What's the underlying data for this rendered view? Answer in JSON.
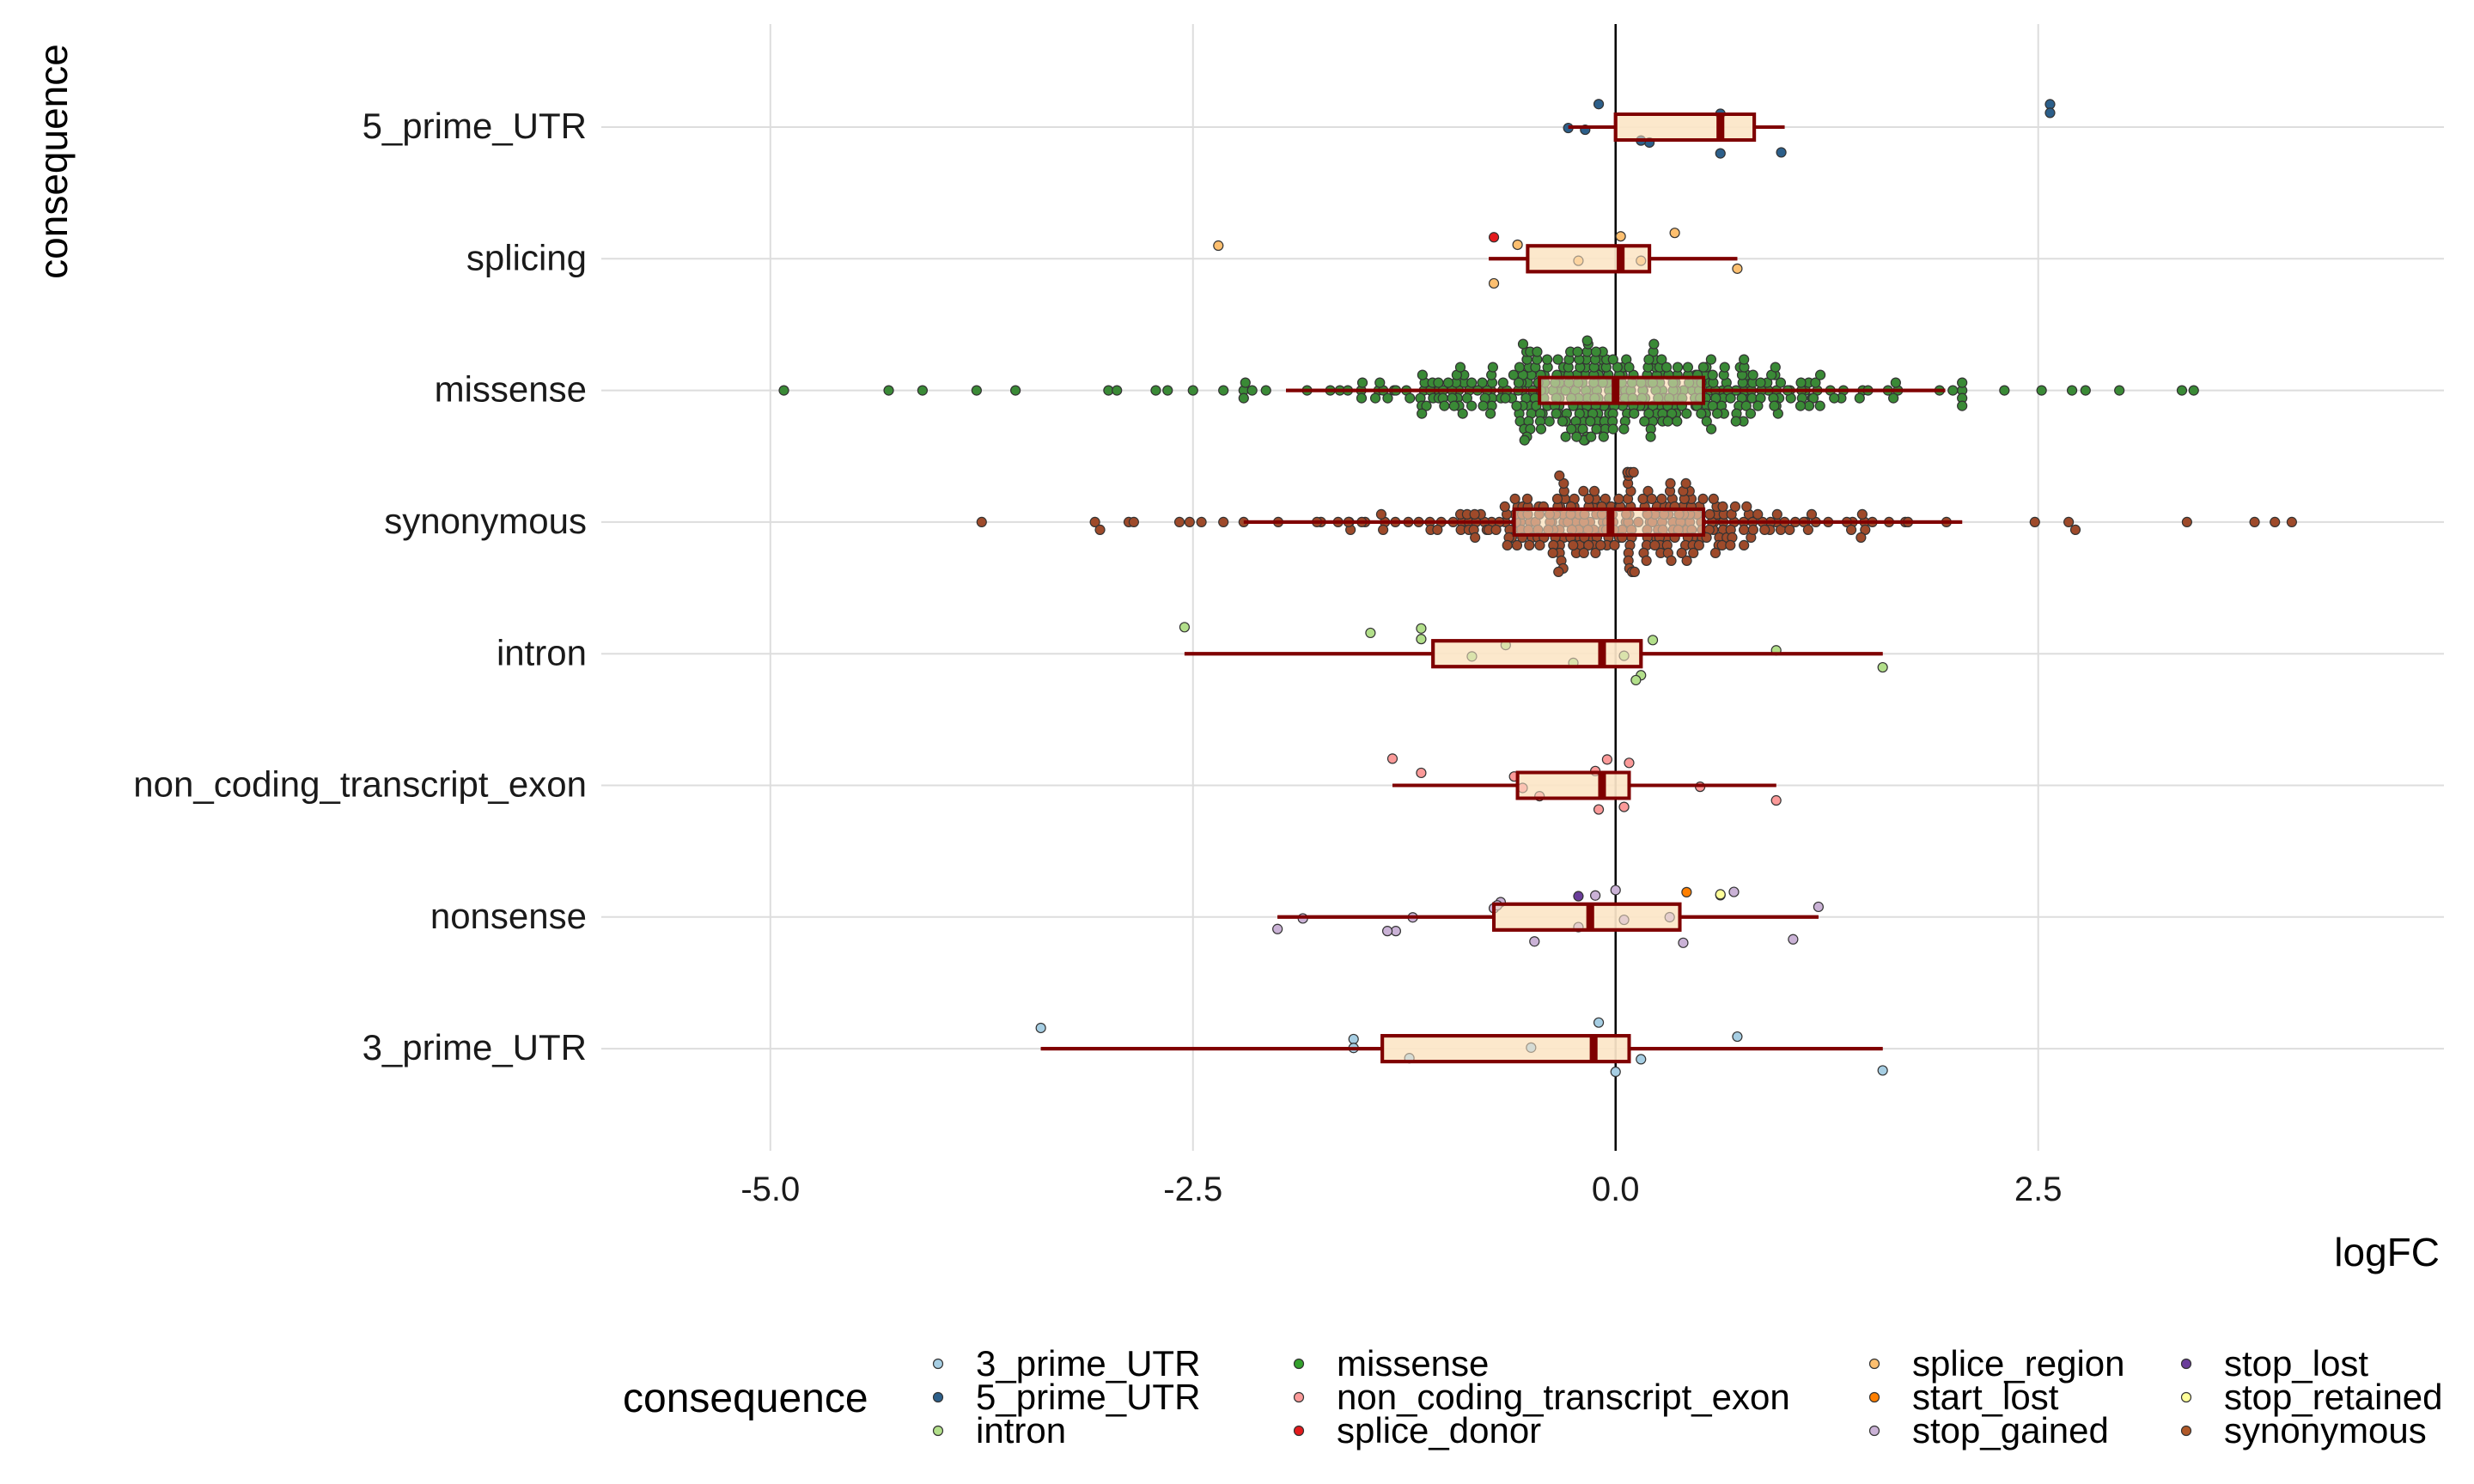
{
  "chart_data": {
    "type": "boxplot-beeswarm",
    "xlabel": "logFC",
    "ylabel": "consequence",
    "xlim": [
      -6.0,
      4.9
    ],
    "xticks": [
      -5.0,
      -2.5,
      0.0,
      2.5
    ],
    "xtick_labels": [
      "-5.0",
      "-2.5",
      "0.0",
      "2.5"
    ],
    "reference_line_x": 0,
    "categories": [
      "5_prime_UTR",
      "splicing",
      "missense",
      "synonymous",
      "intron",
      "non_coding_transcript_exon",
      "nonsense",
      "3_prime_UTR"
    ],
    "boxes": [
      {
        "category": "5_prime_UTR",
        "lower": -0.28,
        "q1": 0.0,
        "median": 0.62,
        "q3": 0.82,
        "upper": 1.0
      },
      {
        "category": "splicing",
        "lower": -0.75,
        "q1": -0.52,
        "median": 0.03,
        "q3": 0.2,
        "upper": 0.72
      },
      {
        "category": "missense",
        "lower": -1.95,
        "q1": -0.45,
        "median": 0.0,
        "q3": 0.52,
        "upper": 1.95
      },
      {
        "category": "synonymous",
        "lower": -2.2,
        "q1": -0.6,
        "median": -0.03,
        "q3": 0.52,
        "upper": 2.05
      },
      {
        "category": "intron",
        "lower": -2.55,
        "q1": -1.08,
        "median": -0.08,
        "q3": 0.15,
        "upper": 1.58
      },
      {
        "category": "non_coding_transcript_exon",
        "lower": -1.32,
        "q1": -0.58,
        "median": -0.08,
        "q3": 0.08,
        "upper": 0.95
      },
      {
        "category": "nonsense",
        "lower": -2.0,
        "q1": -0.72,
        "median": -0.15,
        "q3": 0.38,
        "upper": 1.2
      },
      {
        "category": "3_prime_UTR",
        "lower": -3.4,
        "q1": -1.38,
        "median": -0.13,
        "q3": 0.08,
        "upper": 1.58
      }
    ],
    "point_sets": [
      {
        "category": "5_prime_UTR",
        "type": "5_prime_UTR",
        "values": [
          -0.1,
          0.62,
          -0.28,
          0.2,
          0.98,
          2.57,
          2.57,
          -0.18,
          0.15,
          0.62
        ]
      },
      {
        "category": "splicing",
        "type": "splice_region",
        "values": [
          0.03,
          -2.35,
          -0.22,
          0.72,
          -0.72,
          0.35,
          -0.58,
          0.15
        ]
      },
      {
        "category": "splicing",
        "type": "splice_donor",
        "values": [
          -0.72
        ]
      },
      {
        "category": "missense",
        "type": "missense",
        "count": 420,
        "min": -4.92,
        "max": 3.42,
        "extreme_values": [
          -4.92,
          -4.3,
          -4.1,
          -3.78,
          -3.55,
          -3.0,
          -2.95,
          -2.72,
          -2.65,
          -2.5,
          -2.32,
          -2.2,
          -2.15,
          2.3,
          2.52,
          2.7,
          2.78,
          2.98,
          3.35,
          3.42
        ]
      },
      {
        "category": "synonymous",
        "type": "synonymous",
        "count": 320,
        "min": -3.75,
        "max": 4.0,
        "extreme_values": [
          -3.75,
          -3.08,
          -3.05,
          -2.88,
          -2.85,
          -2.58,
          -2.52,
          -2.45,
          -2.32,
          2.48,
          2.68,
          2.72,
          3.38,
          3.78,
          3.9,
          4.0
        ]
      },
      {
        "category": "intron",
        "type": "intron",
        "values": [
          -2.55,
          -1.15,
          -0.85,
          -0.25,
          0.15,
          -1.45,
          -0.65,
          0.95,
          1.58,
          0.12,
          -1.15,
          0.22,
          0.05
        ]
      },
      {
        "category": "non_coding_transcript_exon",
        "type": "non_coding_transcript_exon",
        "values": [
          -0.05,
          -0.6,
          0.5,
          -0.45,
          0.05,
          -1.32,
          -1.15,
          -0.55,
          0.95,
          -0.1,
          0.08,
          -0.12
        ]
      },
      {
        "category": "nonsense",
        "type": "stop_gained",
        "values": [
          -0.12,
          -0.72,
          0.32,
          -1.3,
          -0.48,
          0.0,
          -0.68,
          -1.2,
          -2.0,
          1.05,
          0.62,
          1.2,
          -1.85,
          -1.35,
          0.4,
          0.7,
          -0.7,
          0.05,
          -0.22
        ]
      },
      {
        "category": "nonsense",
        "type": "stop_retained",
        "values": [
          0.62
        ]
      },
      {
        "category": "nonsense",
        "type": "start_lost",
        "values": [
          0.42
        ]
      },
      {
        "category": "nonsense",
        "type": "stop_lost",
        "values": [
          -0.22
        ]
      },
      {
        "category": "3_prime_UTR",
        "type": "3_prime_UTR",
        "values": [
          -0.1,
          -1.55,
          -0.5,
          0.15,
          1.58,
          -3.4,
          0.72,
          -1.55,
          -1.22,
          0.0
        ]
      }
    ],
    "legend": {
      "title": "consequence",
      "position": "bottom",
      "items": [
        {
          "label": "3_prime_UTR",
          "color": "#a6cee3"
        },
        {
          "label": "5_prime_UTR",
          "color": "#2c5f8a"
        },
        {
          "label": "intron",
          "color": "#b2df8a"
        },
        {
          "label": "missense",
          "color": "#33a02c"
        },
        {
          "label": "non_coding_transcript_exon",
          "color": "#fb9a99"
        },
        {
          "label": "splice_donor",
          "color": "#e31a1c"
        },
        {
          "label": "splice_region",
          "color": "#fdbf6f"
        },
        {
          "label": "start_lost",
          "color": "#ff7f00"
        },
        {
          "label": "stop_gained",
          "color": "#cab2d6"
        },
        {
          "label": "stop_lost",
          "color": "#6a3d9a"
        },
        {
          "label": "stop_retained",
          "color": "#ffff99"
        },
        {
          "label": "synonymous",
          "color": "#b15928"
        }
      ]
    },
    "style_colors": {
      "box_fill": "#fbe6c8",
      "box_stroke": "#7f0000",
      "grid": "#dddddd",
      "point_outline": "#333333",
      "missense_point": "#3a8a36",
      "synonymous_point": "#9e4a2a"
    }
  }
}
